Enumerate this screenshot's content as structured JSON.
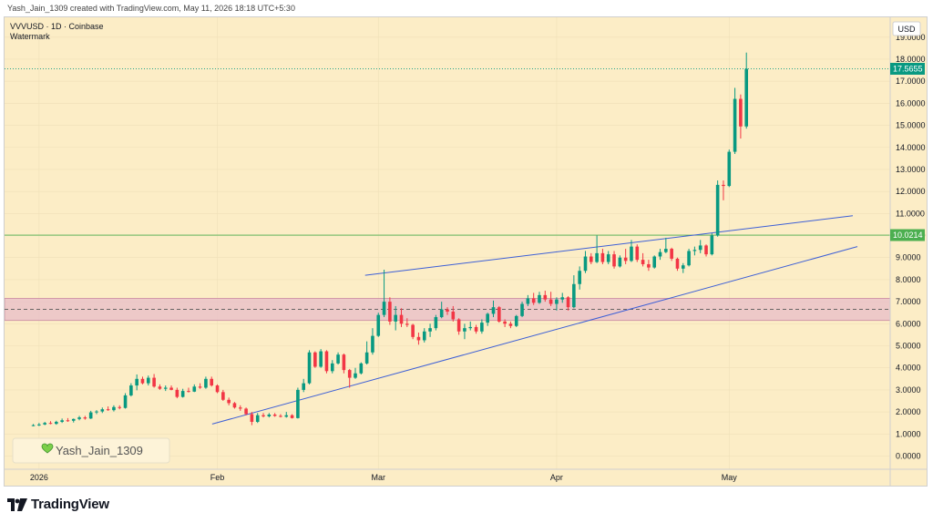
{
  "topbar": {
    "text": "Yash_Jain_1309 created with TradingView.com, May 11, 2026 18:18 UTC+5:30"
  },
  "symbol_line": "VVVUSD · 1D · Coinbase",
  "watermark_line": "Watermark",
  "currency": "USD",
  "author_badge": "Yash_Jain_1309",
  "brand": "TradingView",
  "colors": {
    "background": "#fcedc6",
    "up": "#089981",
    "down": "#f23645",
    "trendline": "#3d5fd6",
    "hline": "#4caf50",
    "zone_fill": "#e8bfc8",
    "zone_border": "#c98aa0"
  },
  "price_labels": [
    {
      "value": 17.5655,
      "text": "17.5655",
      "color": "#089981",
      "line": "dotted"
    },
    {
      "value": 10.0214,
      "text": "10.0214",
      "color": "#4caf50",
      "line": "solid"
    }
  ],
  "zone": {
    "top": 7.15,
    "bottom": 6.15,
    "mid": 6.65
  },
  "chart_data": {
    "type": "candlestick",
    "x_tick_labels": [
      "2026",
      "Feb",
      "Mar",
      "Apr",
      "May"
    ],
    "x_tick_days": [
      0,
      31,
      59,
      90,
      120
    ],
    "y_ticks": [
      0,
      1,
      2,
      3,
      4,
      5,
      6,
      7,
      8,
      9,
      10,
      11,
      12,
      13,
      14,
      15,
      16,
      17,
      18,
      19
    ],
    "y_tick_labels": [
      "0.0000",
      "1.0000",
      "2.0000",
      "3.0000",
      "4.0000",
      "5.0000",
      "6.0000",
      "7.0000",
      "8.0000",
      "9.0000",
      "10.0000",
      "11.0000",
      "12.0000",
      "13.0000",
      "14.0000",
      "15.0000",
      "16.0000",
      "17.0000",
      "18.0000",
      "19.0000"
    ],
    "ylim": [
      -0.6,
      19.9
    ],
    "xlim_days": [
      -6,
      148
    ],
    "grid": true,
    "trendlines": [
      {
        "name": "upper",
        "start": {
          "day": 56.7,
          "price": 8.2
        },
        "end": {
          "day": 141.5,
          "price": 10.9
        }
      },
      {
        "name": "lower",
        "start": {
          "day": 30.1,
          "price": 1.45
        },
        "end": {
          "day": 142.3,
          "price": 9.5
        }
      }
    ],
    "ohlc_start_day": -1,
    "ohlc": [
      [
        1.4,
        1.45,
        1.35,
        1.4
      ],
      [
        1.4,
        1.5,
        1.36,
        1.43
      ],
      [
        1.43,
        1.55,
        1.4,
        1.5
      ],
      [
        1.5,
        1.58,
        1.44,
        1.46
      ],
      [
        1.46,
        1.6,
        1.42,
        1.55
      ],
      [
        1.55,
        1.7,
        1.5,
        1.62
      ],
      [
        1.62,
        1.72,
        1.55,
        1.6
      ],
      [
        1.6,
        1.7,
        1.52,
        1.68
      ],
      [
        1.68,
        1.82,
        1.62,
        1.75
      ],
      [
        1.75,
        1.82,
        1.65,
        1.7
      ],
      [
        1.7,
        2.05,
        1.68,
        1.98
      ],
      [
        1.98,
        2.08,
        1.9,
        2.02
      ],
      [
        2.02,
        2.2,
        1.95,
        2.12
      ],
      [
        2.12,
        2.25,
        2.05,
        2.08
      ],
      [
        2.08,
        2.3,
        2.02,
        2.22
      ],
      [
        2.22,
        2.3,
        2.12,
        2.18
      ],
      [
        2.18,
        2.85,
        2.15,
        2.75
      ],
      [
        2.75,
        3.3,
        2.7,
        3.2
      ],
      [
        3.2,
        3.7,
        2.98,
        3.5
      ],
      [
        3.5,
        3.6,
        3.25,
        3.3
      ],
      [
        3.3,
        3.65,
        3.2,
        3.55
      ],
      [
        3.55,
        3.72,
        3.1,
        3.15
      ],
      [
        3.15,
        3.25,
        3.0,
        3.05
      ],
      [
        3.05,
        3.2,
        2.95,
        3.1
      ],
      [
        3.1,
        3.2,
        2.98,
        3.0
      ],
      [
        3.0,
        3.1,
        2.62,
        2.68
      ],
      [
        2.68,
        3.05,
        2.65,
        2.95
      ],
      [
        2.95,
        3.1,
        2.88,
        2.92
      ],
      [
        2.92,
        3.25,
        2.9,
        3.15
      ],
      [
        3.15,
        3.3,
        3.05,
        3.1
      ],
      [
        3.1,
        3.6,
        3.05,
        3.5
      ],
      [
        3.5,
        3.6,
        3.15,
        3.2
      ],
      [
        3.2,
        3.25,
        2.85,
        2.9
      ],
      [
        2.9,
        3.0,
        2.5,
        2.55
      ],
      [
        2.55,
        2.65,
        2.3,
        2.4
      ],
      [
        2.4,
        2.45,
        2.15,
        2.2
      ],
      [
        2.2,
        2.3,
        2.05,
        2.15
      ],
      [
        2.15,
        2.2,
        1.85,
        1.9
      ],
      [
        1.9,
        2.0,
        1.4,
        1.55
      ],
      [
        1.55,
        1.95,
        1.5,
        1.85
      ],
      [
        1.85,
        1.95,
        1.75,
        1.8
      ],
      [
        1.8,
        1.95,
        1.75,
        1.88
      ],
      [
        1.88,
        1.95,
        1.78,
        1.82
      ],
      [
        1.82,
        1.9,
        1.75,
        1.78
      ],
      [
        1.78,
        2.0,
        1.74,
        1.85
      ],
      [
        1.85,
        1.9,
        1.7,
        1.72
      ],
      [
        1.72,
        3.1,
        1.7,
        3.0
      ],
      [
        3.0,
        3.5,
        2.9,
        3.3
      ],
      [
        3.3,
        4.8,
        3.25,
        4.7
      ],
      [
        4.7,
        4.75,
        4.0,
        4.05
      ],
      [
        4.05,
        4.85,
        4.0,
        4.75
      ],
      [
        4.75,
        4.8,
        3.75,
        3.85
      ],
      [
        3.85,
        4.35,
        3.75,
        4.2
      ],
      [
        4.2,
        4.7,
        4.15,
        4.6
      ],
      [
        4.6,
        4.65,
        3.75,
        3.9
      ],
      [
        3.9,
        3.95,
        3.1,
        3.55
      ],
      [
        3.55,
        4.0,
        3.5,
        3.75
      ],
      [
        3.75,
        4.25,
        3.7,
        4.2
      ],
      [
        4.2,
        5.2,
        4.15,
        4.7
      ],
      [
        4.7,
        5.8,
        4.6,
        5.45
      ],
      [
        5.45,
        6.5,
        5.4,
        6.4
      ],
      [
        6.4,
        8.45,
        6.3,
        7.0
      ],
      [
        7.0,
        7.2,
        5.95,
        6.1
      ],
      [
        6.1,
        6.8,
        5.7,
        6.4
      ],
      [
        6.4,
        6.7,
        5.85,
        6.0
      ],
      [
        6.0,
        6.25,
        5.85,
        5.95
      ],
      [
        5.95,
        6.0,
        5.3,
        5.4
      ],
      [
        5.4,
        5.6,
        5.05,
        5.25
      ],
      [
        5.25,
        5.8,
        5.15,
        5.65
      ],
      [
        5.65,
        6.0,
        5.4,
        5.8
      ],
      [
        5.8,
        6.4,
        5.7,
        6.3
      ],
      [
        6.3,
        7.0,
        6.25,
        6.65
      ],
      [
        6.65,
        6.75,
        6.4,
        6.55
      ],
      [
        6.55,
        6.8,
        6.1,
        6.2
      ],
      [
        6.2,
        6.25,
        5.5,
        5.65
      ],
      [
        5.65,
        6.0,
        5.3,
        5.8
      ],
      [
        5.8,
        6.1,
        5.7,
        5.85
      ],
      [
        5.85,
        5.95,
        5.55,
        5.65
      ],
      [
        5.65,
        6.2,
        5.55,
        6.05
      ],
      [
        6.05,
        6.5,
        5.9,
        6.45
      ],
      [
        6.45,
        7.05,
        6.3,
        6.75
      ],
      [
        6.75,
        6.8,
        6.05,
        6.1
      ],
      [
        6.1,
        6.2,
        5.85,
        6.0
      ],
      [
        6.0,
        6.1,
        5.8,
        5.9
      ],
      [
        5.9,
        6.4,
        5.85,
        6.35
      ],
      [
        6.35,
        7.0,
        6.3,
        6.9
      ],
      [
        6.9,
        7.3,
        6.8,
        7.15
      ],
      [
        7.15,
        7.4,
        6.85,
        6.95
      ],
      [
        6.95,
        7.45,
        6.9,
        7.3
      ],
      [
        7.3,
        7.5,
        7.0,
        7.1
      ],
      [
        7.1,
        7.45,
        6.8,
        6.9
      ],
      [
        6.9,
        7.2,
        6.6,
        7.1
      ],
      [
        7.1,
        7.4,
        6.95,
        7.2
      ],
      [
        7.2,
        7.25,
        6.6,
        6.75
      ],
      [
        6.75,
        8.2,
        6.7,
        7.8
      ],
      [
        7.8,
        8.6,
        7.55,
        8.4
      ],
      [
        8.4,
        9.3,
        8.3,
        9.05
      ],
      [
        9.05,
        9.2,
        8.7,
        8.8
      ],
      [
        8.8,
        10.0,
        8.75,
        9.2
      ],
      [
        9.2,
        9.4,
        8.7,
        8.8
      ],
      [
        8.8,
        9.3,
        8.7,
        9.15
      ],
      [
        9.15,
        9.3,
        8.5,
        8.6
      ],
      [
        8.6,
        9.1,
        8.55,
        9.0
      ],
      [
        9.0,
        9.4,
        8.7,
        8.85
      ],
      [
        8.85,
        9.8,
        8.8,
        9.5
      ],
      [
        9.5,
        9.6,
        8.8,
        8.9
      ],
      [
        8.9,
        9.2,
        8.6,
        8.7
      ],
      [
        8.7,
        8.9,
        8.4,
        8.55
      ],
      [
        8.55,
        9.1,
        8.5,
        9.05
      ],
      [
        9.05,
        9.4,
        8.9,
        9.25
      ],
      [
        9.25,
        9.9,
        9.2,
        9.4
      ],
      [
        9.4,
        9.45,
        8.85,
        8.95
      ],
      [
        8.95,
        9.0,
        8.4,
        8.5
      ],
      [
        8.5,
        8.75,
        8.3,
        8.65
      ],
      [
        8.65,
        9.4,
        8.6,
        9.3
      ],
      [
        9.3,
        9.5,
        9.1,
        9.35
      ],
      [
        9.35,
        9.8,
        9.2,
        9.55
      ],
      [
        9.55,
        9.6,
        9.05,
        9.15
      ],
      [
        9.15,
        10.1,
        9.1,
        10.0
      ],
      [
        10.0,
        12.5,
        9.95,
        12.3
      ],
      [
        12.3,
        12.5,
        11.6,
        12.25
      ],
      [
        12.25,
        13.9,
        12.2,
        13.8
      ],
      [
        13.8,
        16.7,
        13.7,
        16.2
      ],
      [
        16.2,
        16.4,
        14.4,
        14.95
      ],
      [
        14.95,
        18.3,
        14.85,
        17.5655
      ]
    ]
  }
}
